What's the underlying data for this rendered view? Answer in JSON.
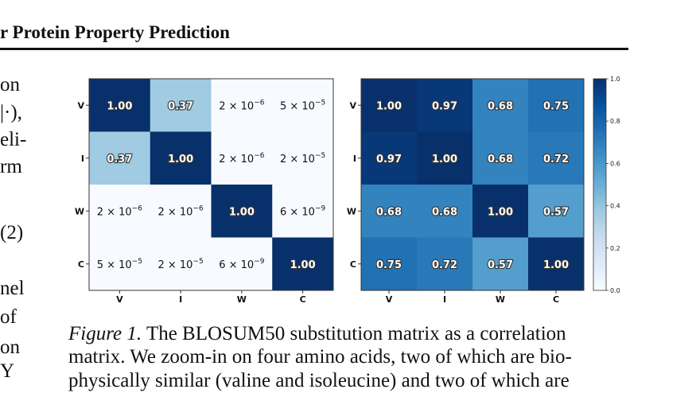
{
  "header": {
    "title": "r Protein Property Prediction"
  },
  "left_fragments": [
    "on",
    "|·),",
    "eli-",
    "rm",
    "(2)",
    "nel",
    "of",
    "on",
    "Y"
  ],
  "caption": {
    "figure_label": "Figure 1.",
    "line1": "The BLOSUM50 substitution matrix as a correlation",
    "line2": "matrix. We zoom-in on four amino acids, two of which are bio-",
    "line3": "physically similar (valine and isoleucine) and two of which are"
  },
  "chart_data": [
    {
      "type": "heatmap",
      "title": "",
      "x_categories": [
        "V",
        "I",
        "W",
        "C"
      ],
      "y_categories": [
        "V",
        "I",
        "W",
        "C"
      ],
      "cells": [
        [
          {
            "v": 1.0,
            "label": "1.00"
          },
          {
            "v": 0.37,
            "label": "0.37"
          },
          {
            "v": 2e-06,
            "mant": "2",
            "exp": "-6"
          },
          {
            "v": 5e-05,
            "mant": "5",
            "exp": "-5"
          }
        ],
        [
          {
            "v": 0.37,
            "label": "0.37"
          },
          {
            "v": 1.0,
            "label": "1.00"
          },
          {
            "v": 2e-06,
            "mant": "2",
            "exp": "-6"
          },
          {
            "v": 2e-05,
            "mant": "2",
            "exp": "-5"
          }
        ],
        [
          {
            "v": 2e-06,
            "mant": "2",
            "exp": "-6"
          },
          {
            "v": 2e-06,
            "mant": "2",
            "exp": "-6"
          },
          {
            "v": 1.0,
            "label": "1.00"
          },
          {
            "v": 6e-09,
            "mant": "6",
            "exp": "-9"
          }
        ],
        [
          {
            "v": 5e-05,
            "mant": "5",
            "exp": "-5"
          },
          {
            "v": 2e-05,
            "mant": "2",
            "exp": "-5"
          },
          {
            "v": 6e-09,
            "mant": "6",
            "exp": "-9"
          },
          {
            "v": 1.0,
            "label": "1.00"
          }
        ]
      ]
    },
    {
      "type": "heatmap",
      "title": "",
      "x_categories": [
        "V",
        "I",
        "W",
        "C"
      ],
      "y_categories": [
        "V",
        "I",
        "W",
        "C"
      ],
      "cells": [
        [
          {
            "v": 1.0,
            "label": "1.00"
          },
          {
            "v": 0.97,
            "label": "0.97"
          },
          {
            "v": 0.68,
            "label": "0.68"
          },
          {
            "v": 0.75,
            "label": "0.75"
          }
        ],
        [
          {
            "v": 0.97,
            "label": "0.97"
          },
          {
            "v": 1.0,
            "label": "1.00"
          },
          {
            "v": 0.68,
            "label": "0.68"
          },
          {
            "v": 0.72,
            "label": "0.72"
          }
        ],
        [
          {
            "v": 0.68,
            "label": "0.68"
          },
          {
            "v": 0.68,
            "label": "0.68"
          },
          {
            "v": 1.0,
            "label": "1.00"
          },
          {
            "v": 0.57,
            "label": "0.57"
          }
        ],
        [
          {
            "v": 0.75,
            "label": "0.75"
          },
          {
            "v": 0.72,
            "label": "0.72"
          },
          {
            "v": 0.57,
            "label": "0.57"
          },
          {
            "v": 1.0,
            "label": "1.00"
          }
        ]
      ],
      "colorbar": {
        "range": [
          0.0,
          1.0
        ],
        "ticks": [
          "0.0",
          "0.2",
          "0.4",
          "0.6",
          "0.8",
          "1.0"
        ],
        "colormap": "Blues"
      }
    }
  ]
}
